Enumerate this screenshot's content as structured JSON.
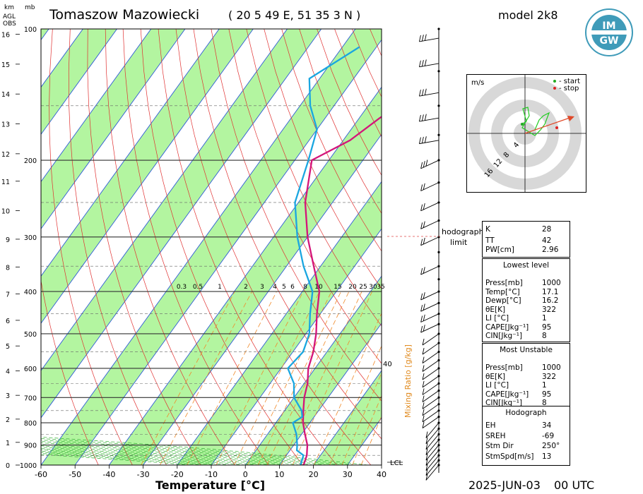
{
  "header": {
    "station": "Tomaszow Mazowiecki",
    "coords": "( 20 5 49 E, 51 35 3 N )",
    "model": "model 2k8",
    "units_km": "km",
    "units_mb": "mb",
    "agl": "AGL",
    "obs": "OBS"
  },
  "footer": {
    "xlabel": "Temperature [°C]",
    "date": "2025-JUN-03",
    "time": "00 UTC"
  },
  "logo": {
    "top": "IM",
    "bottom": "GW"
  },
  "annotations": {
    "hodograph_limit_1": "hodograph",
    "hodograph_limit_2": "limit",
    "lcl": "LCL",
    "mixing_ratio": "Mixing Ratio [g/kg]",
    "mixing_ratio_40": "40"
  },
  "hodograph": {
    "unit": "m/s",
    "legend_start": "- start",
    "legend_stop": "- stop",
    "rings": [
      "4",
      "8",
      "12",
      "16"
    ],
    "start_color": "#22aa22",
    "stop_color": "#dd2222"
  },
  "indices": {
    "K_label": "K",
    "K": "28",
    "TT_label": "TT",
    "TT": "42",
    "PW_label": "PW[cm]",
    "PW": "2.96"
  },
  "lowest": {
    "title": "Lowest level",
    "rows": [
      {
        "k": "Press[mb]",
        "v": "1000"
      },
      {
        "k": "Temp[°C]",
        "v": "17.1"
      },
      {
        "k": "Dewp[°C]",
        "v": "16.2"
      },
      {
        "k": "θE[K]",
        "v": "322"
      },
      {
        "k": "LI [°C]",
        "v": "1"
      },
      {
        "k": "CAPE[Jkg⁻¹]",
        "v": "95"
      },
      {
        "k": "CIN[Jkg⁻¹]",
        "v": "8"
      }
    ]
  },
  "unstable": {
    "title": "Most Unstable",
    "rows": [
      {
        "k": "Press[mb]",
        "v": "1000"
      },
      {
        "k": "θE[K]",
        "v": "322"
      },
      {
        "k": "LI [°C]",
        "v": "1"
      },
      {
        "k": "CAPE[Jkg⁻¹]",
        "v": "95"
      },
      {
        "k": "CIN[Jkg⁻¹]",
        "v": "8"
      }
    ]
  },
  "hodo_panel": {
    "title": "Hodograph",
    "rows": [
      {
        "k": "EH",
        "v": "34"
      },
      {
        "k": "SREH",
        "v": "-69"
      },
      {
        "k": "Stm Dir",
        "v": "250°"
      },
      {
        "k": "StmSpd[m/s]",
        "v": "13"
      }
    ]
  },
  "chart_data": {
    "type": "line",
    "title": "Tomaszow Mazowiecki",
    "xlabel": "Temperature [°C]",
    "ylabel": "mb",
    "xlim": [
      -60,
      40
    ],
    "x_ticks": [
      "-60",
      "-50",
      "-40",
      "-30",
      "-20",
      "-10",
      "0",
      "10",
      "20",
      "30",
      "40"
    ],
    "pressure_ticks": [
      "100",
      "200",
      "300",
      "400",
      "500",
      "600",
      "700",
      "800",
      "900",
      "1000"
    ],
    "km_ticks": [
      "0",
      "1",
      "2",
      "3",
      "4",
      "5",
      "6",
      "7",
      "8",
      "9",
      "10",
      "11",
      "12",
      "13",
      "14",
      "15",
      "16"
    ],
    "mixing_ratio_labels": [
      "0.3",
      "0.5",
      "1",
      "2",
      "3",
      "4",
      "5",
      "6",
      "8",
      "10",
      "15",
      "20",
      "25",
      "30",
      "35"
    ],
    "temperature_color": "#d4157a",
    "dewpoint_color": "#1aa6e0",
    "series": [
      {
        "name": "temperature",
        "points": [
          [
            1000,
            17.1
          ],
          [
            950,
            16
          ],
          [
            925,
            15
          ],
          [
            900,
            14
          ],
          [
            850,
            11
          ],
          [
            800,
            8
          ],
          [
            750,
            5.5
          ],
          [
            700,
            3
          ],
          [
            650,
            1
          ],
          [
            600,
            -2
          ],
          [
            550,
            -4
          ],
          [
            500,
            -7
          ],
          [
            450,
            -11
          ],
          [
            400,
            -15
          ],
          [
            350,
            -22
          ],
          [
            300,
            -30
          ],
          [
            250,
            -38
          ],
          [
            200,
            -45
          ],
          [
            180,
            -38
          ],
          [
            160,
            -34
          ],
          [
            150,
            -31
          ],
          [
            130,
            -28
          ],
          [
            110,
            -22
          ]
        ]
      },
      {
        "name": "dewpoint",
        "points": [
          [
            1000,
            16.2
          ],
          [
            950,
            15
          ],
          [
            925,
            12
          ],
          [
            900,
            11
          ],
          [
            850,
            8.5
          ],
          [
            800,
            5
          ],
          [
            775,
            6.5
          ],
          [
            750,
            5
          ],
          [
            700,
            0
          ],
          [
            650,
            -3
          ],
          [
            600,
            -8
          ],
          [
            550,
            -7
          ],
          [
            500,
            -9
          ],
          [
            450,
            -13
          ],
          [
            400,
            -17
          ],
          [
            350,
            -25
          ],
          [
            300,
            -33
          ],
          [
            250,
            -41
          ],
          [
            200,
            -46
          ],
          [
            170,
            -50
          ],
          [
            150,
            -57
          ],
          [
            130,
            -63
          ],
          [
            110,
            -55
          ]
        ]
      }
    ]
  }
}
